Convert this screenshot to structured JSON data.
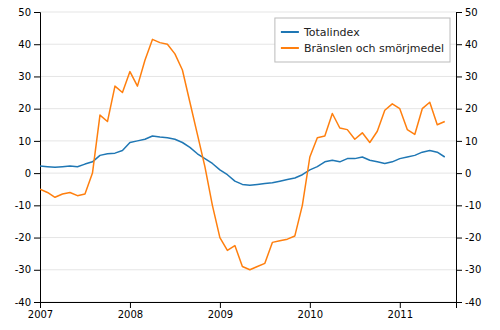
{
  "chart_data": {
    "type": "line",
    "x": [
      2007.0,
      2007.0833333333333,
      2007.1666666666667,
      2007.25,
      2007.3333333333333,
      2007.4166666666667,
      2007.5,
      2007.5833333333333,
      2007.6666666666667,
      2007.75,
      2007.8333333333333,
      2007.9166666666667,
      2008.0,
      2008.0833333333333,
      2008.1666666666667,
      2008.25,
      2008.3333333333333,
      2008.4166666666667,
      2008.5,
      2008.5833333333333,
      2008.6666666666667,
      2008.75,
      2008.8333333333333,
      2008.9166666666667,
      2009.0,
      2009.0833333333333,
      2009.1666666666667,
      2009.25,
      2009.3333333333333,
      2009.4166666666667,
      2009.5,
      2009.5833333333333,
      2009.6666666666667,
      2009.75,
      2009.8333333333333,
      2009.9166666666667,
      2010.0,
      2010.0833333333333,
      2010.1666666666667,
      2010.25,
      2010.3333333333333,
      2010.4166666666667,
      2010.5,
      2010.5833333333333,
      2010.6666666666667,
      2010.75,
      2010.8333333333333,
      2010.9166666666667,
      2011.0,
      2011.0833333333333,
      2011.1666666666667,
      2011.25,
      2011.3333333333333,
      2011.4166666666667,
      2011.5
    ],
    "series": [
      {
        "name": "Totalindex",
        "values": [
          2.2,
          2.0,
          1.8,
          2.0,
          2.2,
          2.0,
          2.8,
          3.5,
          5.5,
          6.0,
          6.2,
          7.0,
          9.5,
          10.0,
          10.5,
          11.5,
          11.2,
          11.0,
          10.5,
          9.5,
          8.0,
          6.0,
          4.5,
          3.0,
          1.0,
          -0.5,
          -2.5,
          -3.5,
          -3.8,
          -3.5,
          -3.2,
          -3.0,
          -2.5,
          -2.0,
          -1.5,
          -0.5,
          1.0,
          2.0,
          3.5,
          4.0,
          3.5,
          4.5,
          4.5,
          5.0,
          4.0,
          3.5,
          3.0,
          3.5,
          4.5,
          5.0,
          5.5,
          6.5,
          7.0,
          6.5,
          5.0
        ]
      },
      {
        "name": "Bränslen och smörjmedel",
        "axis": "y2",
        "values": [
          -5.0,
          -6.0,
          -7.5,
          -6.5,
          -6.0,
          -7.0,
          -6.5,
          0.0,
          18.0,
          16.0,
          27.0,
          25.0,
          31.5,
          27.0,
          35.0,
          41.5,
          40.5,
          40.0,
          37.0,
          32.0,
          22.0,
          12.0,
          2.0,
          -10.0,
          -20.0,
          -24.0,
          -22.5,
          -29.0,
          -30.0,
          -29.0,
          -28.0,
          -21.5,
          -21.0,
          -20.5,
          -19.5,
          -10.0,
          5.0,
          11.0,
          11.5,
          18.5,
          14.0,
          13.5,
          10.5,
          12.5,
          9.5,
          13.0,
          19.5,
          21.5,
          20.0,
          13.5,
          12.0,
          20.0,
          22.0,
          15.0,
          16.0
        ]
      }
    ],
    "xlim": [
      2007.0,
      2011.625
    ],
    "xticks": [
      2007,
      2008,
      2009,
      2010,
      2011
    ],
    "ylim": [
      -40,
      50
    ],
    "yticks": [
      -40,
      -30,
      -20,
      -10,
      0,
      10,
      20,
      30,
      40,
      50
    ],
    "y2lim": [
      -40,
      50
    ],
    "y2ticks": [
      -40,
      -30,
      -20,
      -10,
      0,
      10,
      20,
      30,
      40,
      50
    ],
    "grid": true,
    "legend": "upper right"
  }
}
